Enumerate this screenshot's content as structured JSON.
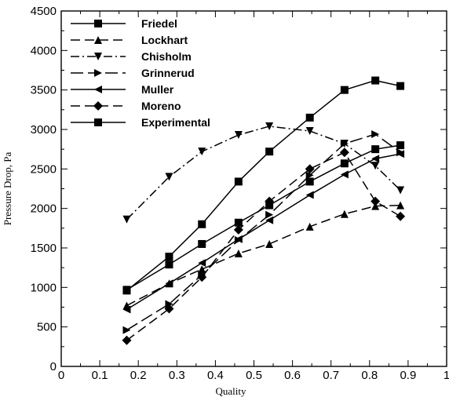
{
  "chart_data": {
    "type": "line",
    "title": "",
    "xlabel": "Quality",
    "ylabel": "Pressure Drop, Pa",
    "xlim": [
      0,
      1
    ],
    "ylim": [
      0,
      4500
    ],
    "xticks": [
      0,
      0.1,
      0.2,
      0.3,
      0.4,
      0.5,
      0.6,
      0.7,
      0.8,
      0.9,
      1
    ],
    "xtick_labels": [
      "0",
      "0.1",
      "0.2",
      "0.3",
      "0.4",
      "0.5",
      "0.6",
      "0.7",
      "0.8",
      "0.9",
      "1"
    ],
    "yticks": [
      0,
      500,
      1000,
      1500,
      2000,
      2500,
      3000,
      3500,
      4000,
      4500
    ],
    "ytick_labels": [
      "0",
      "500",
      "1000",
      "1500",
      "2000",
      "2500",
      "3000",
      "3500",
      "4000",
      "4500"
    ],
    "grid": false,
    "legend_position": "top-left",
    "series": [
      {
        "name": "Friedel",
        "marker": "square",
        "dash": "solid",
        "x": [
          0.17,
          0.28,
          0.365,
          0.46,
          0.54,
          0.645,
          0.735,
          0.815,
          0.88
        ],
        "y": [
          960,
          1390,
          1800,
          2340,
          2720,
          3150,
          3500,
          3620,
          3550
        ]
      },
      {
        "name": "Lockhart",
        "marker": "triangle-up",
        "dash": "dash",
        "x": [
          0.17,
          0.28,
          0.365,
          0.46,
          0.54,
          0.645,
          0.735,
          0.815,
          0.88
        ],
        "y": [
          770,
          1050,
          1230,
          1430,
          1550,
          1770,
          1930,
          2030,
          2040
        ]
      },
      {
        "name": "Chisholm",
        "marker": "triangle-down",
        "dash": "dashdot",
        "x": [
          0.17,
          0.28,
          0.365,
          0.46,
          0.54,
          0.645,
          0.735,
          0.815,
          0.88
        ],
        "y": [
          1860,
          2400,
          2720,
          2930,
          3040,
          2980,
          2820,
          2540,
          2230
        ]
      },
      {
        "name": "Grinnerud",
        "marker": "triangle-right",
        "dash": "longdash",
        "x": [
          0.17,
          0.28,
          0.365,
          0.46,
          0.54,
          0.645,
          0.735,
          0.815,
          0.88
        ],
        "y": [
          460,
          790,
          1160,
          1600,
          1920,
          2420,
          2820,
          2940,
          2710
        ]
      },
      {
        "name": "Muller",
        "marker": "triangle-left",
        "dash": "solid",
        "x": [
          0.17,
          0.28,
          0.365,
          0.46,
          0.54,
          0.645,
          0.735,
          0.815,
          0.88
        ],
        "y": [
          720,
          1050,
          1310,
          1610,
          1850,
          2170,
          2430,
          2630,
          2690
        ]
      },
      {
        "name": "Moreno",
        "marker": "diamond",
        "dash": "dash",
        "x": [
          0.17,
          0.28,
          0.365,
          0.46,
          0.54,
          0.645,
          0.735,
          0.815,
          0.88
        ],
        "y": [
          330,
          730,
          1130,
          1730,
          2090,
          2500,
          2710,
          2090,
          1900
        ]
      },
      {
        "name": "Experimental",
        "marker": "square",
        "dash": "solid",
        "x": [
          0.17,
          0.28,
          0.365,
          0.46,
          0.54,
          0.645,
          0.735,
          0.815,
          0.88
        ],
        "y": [
          970,
          1290,
          1550,
          1820,
          2040,
          2340,
          2570,
          2750,
          2800
        ]
      }
    ]
  }
}
